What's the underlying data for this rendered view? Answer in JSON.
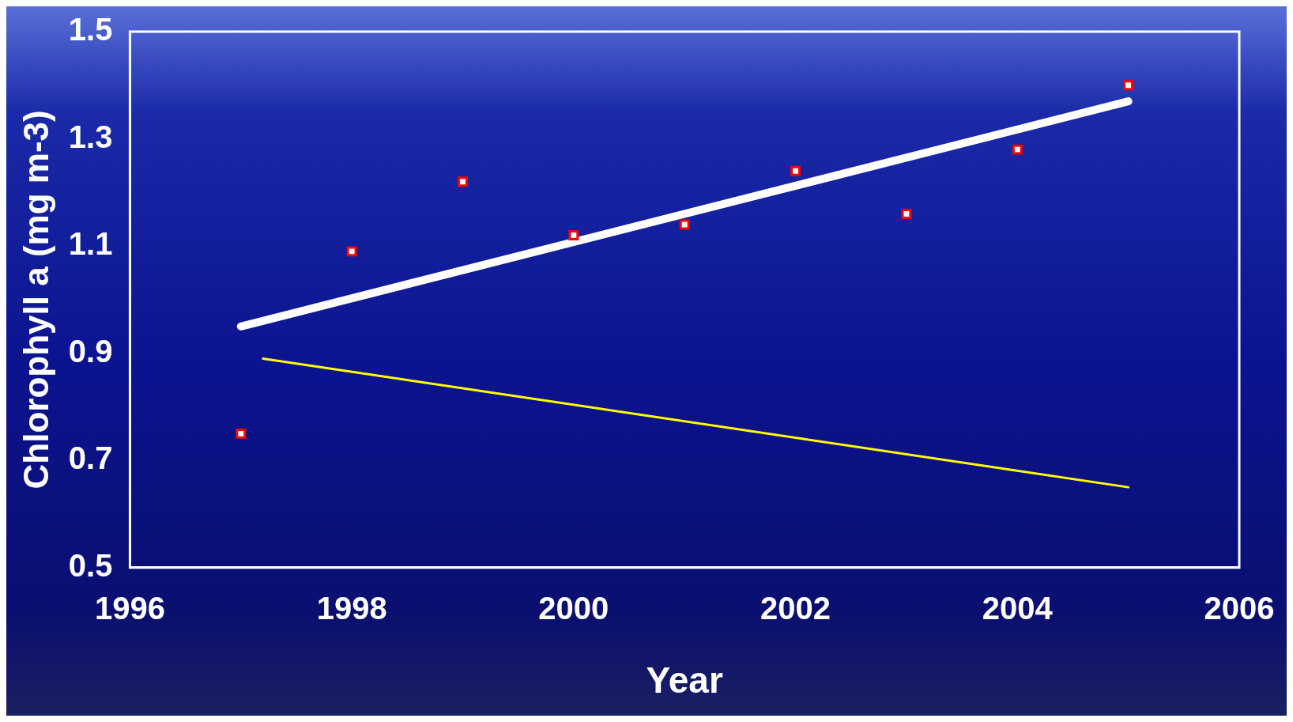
{
  "chart_data": {
    "type": "scatter",
    "xlabel": "Year",
    "ylabel": "Chlorophyll a (mg m-3)",
    "xlim": [
      1996,
      2006
    ],
    "xticks": [
      1996,
      1998,
      2000,
      2002,
      2004,
      2006
    ],
    "ylim": [
      0.5,
      1.5
    ],
    "yticks": [
      0.5,
      0.7,
      0.9,
      1.1,
      1.3,
      1.5
    ],
    "grid": false,
    "legend": false,
    "series": [
      {
        "type": "scatter",
        "marker": "square",
        "color": "#ff0000",
        "x": [
          1997,
          1998,
          1999,
          2000,
          2001,
          2002,
          2003,
          2004,
          2005
        ],
        "values": [
          0.75,
          1.09,
          1.22,
          1.12,
          1.14,
          1.24,
          1.16,
          1.28,
          1.4
        ]
      },
      {
        "type": "line",
        "color": "#ffffff",
        "x": [
          1997,
          2005
        ],
        "values": [
          0.95,
          1.37
        ]
      },
      {
        "type": "line",
        "color": "#ffff00",
        "x": [
          1997.2,
          2005
        ],
        "values": [
          0.89,
          0.65
        ]
      }
    ]
  }
}
